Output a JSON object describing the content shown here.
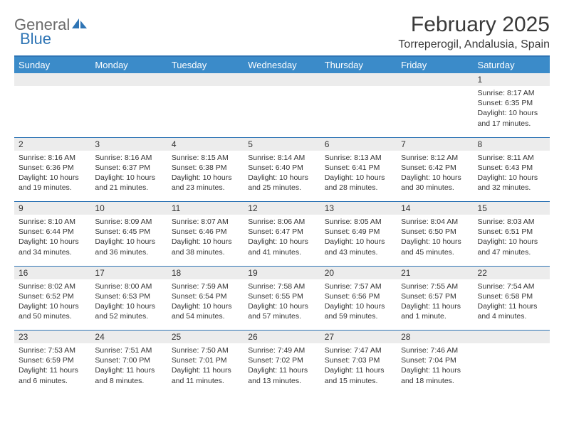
{
  "logo": {
    "part1": "General",
    "part2": "Blue"
  },
  "title": "February 2025",
  "location": "Torreperogil, Andalusia, Spain",
  "colors": {
    "header_bar": "#3b8bc9",
    "rule": "#2f75b5",
    "daynum_bg": "#ececec",
    "text": "#333333",
    "logo_gray": "#6b6b6b",
    "logo_blue": "#2f75b5"
  },
  "day_headers": [
    "Sunday",
    "Monday",
    "Tuesday",
    "Wednesday",
    "Thursday",
    "Friday",
    "Saturday"
  ],
  "weeks": [
    {
      "nums": [
        "",
        "",
        "",
        "",
        "",
        "",
        "1"
      ],
      "cells": [
        "",
        "",
        "",
        "",
        "",
        "",
        "Sunrise: 8:17 AM\nSunset: 6:35 PM\nDaylight: 10 hours and 17 minutes."
      ]
    },
    {
      "nums": [
        "2",
        "3",
        "4",
        "5",
        "6",
        "7",
        "8"
      ],
      "cells": [
        "Sunrise: 8:16 AM\nSunset: 6:36 PM\nDaylight: 10 hours and 19 minutes.",
        "Sunrise: 8:16 AM\nSunset: 6:37 PM\nDaylight: 10 hours and 21 minutes.",
        "Sunrise: 8:15 AM\nSunset: 6:38 PM\nDaylight: 10 hours and 23 minutes.",
        "Sunrise: 8:14 AM\nSunset: 6:40 PM\nDaylight: 10 hours and 25 minutes.",
        "Sunrise: 8:13 AM\nSunset: 6:41 PM\nDaylight: 10 hours and 28 minutes.",
        "Sunrise: 8:12 AM\nSunset: 6:42 PM\nDaylight: 10 hours and 30 minutes.",
        "Sunrise: 8:11 AM\nSunset: 6:43 PM\nDaylight: 10 hours and 32 minutes."
      ]
    },
    {
      "nums": [
        "9",
        "10",
        "11",
        "12",
        "13",
        "14",
        "15"
      ],
      "cells": [
        "Sunrise: 8:10 AM\nSunset: 6:44 PM\nDaylight: 10 hours and 34 minutes.",
        "Sunrise: 8:09 AM\nSunset: 6:45 PM\nDaylight: 10 hours and 36 minutes.",
        "Sunrise: 8:07 AM\nSunset: 6:46 PM\nDaylight: 10 hours and 38 minutes.",
        "Sunrise: 8:06 AM\nSunset: 6:47 PM\nDaylight: 10 hours and 41 minutes.",
        "Sunrise: 8:05 AM\nSunset: 6:49 PM\nDaylight: 10 hours and 43 minutes.",
        "Sunrise: 8:04 AM\nSunset: 6:50 PM\nDaylight: 10 hours and 45 minutes.",
        "Sunrise: 8:03 AM\nSunset: 6:51 PM\nDaylight: 10 hours and 47 minutes."
      ]
    },
    {
      "nums": [
        "16",
        "17",
        "18",
        "19",
        "20",
        "21",
        "22"
      ],
      "cells": [
        "Sunrise: 8:02 AM\nSunset: 6:52 PM\nDaylight: 10 hours and 50 minutes.",
        "Sunrise: 8:00 AM\nSunset: 6:53 PM\nDaylight: 10 hours and 52 minutes.",
        "Sunrise: 7:59 AM\nSunset: 6:54 PM\nDaylight: 10 hours and 54 minutes.",
        "Sunrise: 7:58 AM\nSunset: 6:55 PM\nDaylight: 10 hours and 57 minutes.",
        "Sunrise: 7:57 AM\nSunset: 6:56 PM\nDaylight: 10 hours and 59 minutes.",
        "Sunrise: 7:55 AM\nSunset: 6:57 PM\nDaylight: 11 hours and 1 minute.",
        "Sunrise: 7:54 AM\nSunset: 6:58 PM\nDaylight: 11 hours and 4 minutes."
      ]
    },
    {
      "nums": [
        "23",
        "24",
        "25",
        "26",
        "27",
        "28",
        ""
      ],
      "cells": [
        "Sunrise: 7:53 AM\nSunset: 6:59 PM\nDaylight: 11 hours and 6 minutes.",
        "Sunrise: 7:51 AM\nSunset: 7:00 PM\nDaylight: 11 hours and 8 minutes.",
        "Sunrise: 7:50 AM\nSunset: 7:01 PM\nDaylight: 11 hours and 11 minutes.",
        "Sunrise: 7:49 AM\nSunset: 7:02 PM\nDaylight: 11 hours and 13 minutes.",
        "Sunrise: 7:47 AM\nSunset: 7:03 PM\nDaylight: 11 hours and 15 minutes.",
        "Sunrise: 7:46 AM\nSunset: 7:04 PM\nDaylight: 11 hours and 18 minutes.",
        ""
      ]
    }
  ]
}
